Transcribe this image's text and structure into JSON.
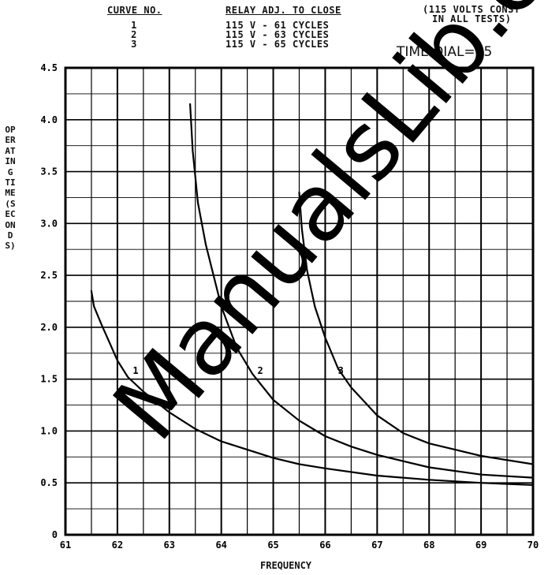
{
  "header": {
    "curve_heading": "CURVE NO.",
    "curve_numbers": [
      "1",
      "2",
      "3"
    ],
    "relay_heading": "RELAY ADJ. TO CLOSE",
    "relay_settings": [
      "115 V - 61 CYCLES",
      "115 V - 63 CYCLES",
      "115 V - 65 CYCLES"
    ],
    "note_line1": "(115 VOLTS CONST",
    "note_line2": "IN ALL TESTS)",
    "time_dial": "TIME DIAL= .5"
  },
  "watermark": "ManualsLib.com",
  "chart_data": {
    "type": "line",
    "xlabel": "FREQUENCY",
    "ylabel": "OPERATING TIME (SECONDS)",
    "xlim": [
      61,
      70
    ],
    "ylim": [
      0,
      4.5
    ],
    "x_ticks": [
      "61",
      "62",
      "63",
      "64",
      "65",
      "66",
      "67",
      "68",
      "69",
      "70"
    ],
    "y_ticks": [
      "0",
      "0.5",
      "1.0",
      "1.5",
      "2.0",
      "2.5",
      "3.0",
      "3.5",
      "4.0",
      "4.5"
    ],
    "grid": true,
    "series": [
      {
        "name": "1",
        "x": [
          61.5,
          61.55,
          61.7,
          61.85,
          62.0,
          62.2,
          62.5,
          63.0,
          63.5,
          64.0,
          64.5,
          65.0,
          65.5,
          66.0,
          67.0,
          68.0,
          69.0,
          70.0
        ],
        "y": [
          2.35,
          2.2,
          2.02,
          1.85,
          1.68,
          1.52,
          1.38,
          1.18,
          1.02,
          0.9,
          0.82,
          0.74,
          0.68,
          0.64,
          0.57,
          0.53,
          0.5,
          0.48
        ]
      },
      {
        "name": "2",
        "x": [
          63.4,
          63.45,
          63.55,
          63.7,
          64.0,
          64.3,
          64.6,
          65.0,
          65.5,
          66.0,
          66.5,
          67.0,
          68.0,
          69.0,
          70.0
        ],
        "y": [
          4.15,
          3.7,
          3.2,
          2.8,
          2.2,
          1.8,
          1.55,
          1.3,
          1.1,
          0.95,
          0.85,
          0.77,
          0.65,
          0.58,
          0.55
        ]
      },
      {
        "name": "3",
        "x": [
          65.5,
          65.55,
          65.65,
          65.8,
          66.0,
          66.25,
          66.5,
          67.0,
          67.5,
          68.0,
          68.5,
          69.0,
          70.0
        ],
        "y": [
          3.3,
          2.95,
          2.55,
          2.2,
          1.9,
          1.6,
          1.42,
          1.15,
          0.98,
          0.88,
          0.82,
          0.76,
          0.68
        ]
      }
    ],
    "curve_labels": [
      {
        "text": "1",
        "x": 62.35,
        "y": 1.55
      },
      {
        "text": "2",
        "x": 64.75,
        "y": 1.55
      },
      {
        "text": "3",
        "x": 66.3,
        "y": 1.55
      }
    ]
  }
}
